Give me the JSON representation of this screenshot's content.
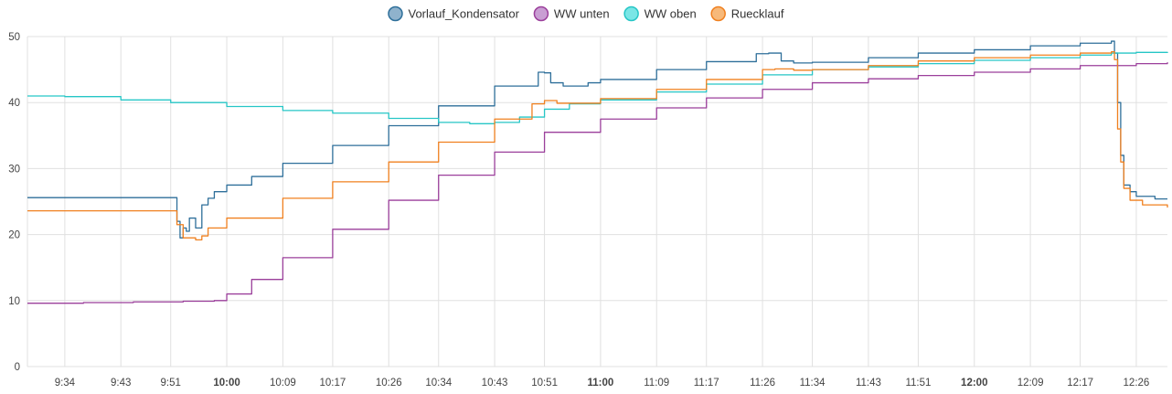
{
  "chart_data": {
    "type": "line",
    "title": "",
    "xlabel": "",
    "ylabel": "",
    "ylim": [
      0,
      50
    ],
    "yticks": [
      "0",
      "10",
      "20",
      "30",
      "40",
      "50"
    ],
    "xlim": [
      "09:28",
      "12:31"
    ],
    "xticks": [
      {
        "label": "9:34",
        "time": "09:34",
        "bold": false
      },
      {
        "label": "9:43",
        "time": "09:43",
        "bold": false
      },
      {
        "label": "9:51",
        "time": "09:51",
        "bold": false
      },
      {
        "label": "10:00",
        "time": "10:00",
        "bold": true
      },
      {
        "label": "10:09",
        "time": "10:09",
        "bold": false
      },
      {
        "label": "10:17",
        "time": "10:17",
        "bold": false
      },
      {
        "label": "10:26",
        "time": "10:26",
        "bold": false
      },
      {
        "label": "10:34",
        "time": "10:34",
        "bold": false
      },
      {
        "label": "10:43",
        "time": "10:43",
        "bold": false
      },
      {
        "label": "10:51",
        "time": "10:51",
        "bold": false
      },
      {
        "label": "11:00",
        "time": "11:00",
        "bold": true
      },
      {
        "label": "11:09",
        "time": "11:09",
        "bold": false
      },
      {
        "label": "11:17",
        "time": "11:17",
        "bold": false
      },
      {
        "label": "11:26",
        "time": "11:26",
        "bold": false
      },
      {
        "label": "11:34",
        "time": "11:34",
        "bold": false
      },
      {
        "label": "11:43",
        "time": "11:43",
        "bold": false
      },
      {
        "label": "11:51",
        "time": "11:51",
        "bold": false
      },
      {
        "label": "12:00",
        "time": "12:00",
        "bold": true
      },
      {
        "label": "12:09",
        "time": "12:09",
        "bold": false
      },
      {
        "label": "12:17",
        "time": "12:17",
        "bold": false
      },
      {
        "label": "12:26",
        "time": "12:26",
        "bold": false
      }
    ],
    "grid": true,
    "legend_position": "top-center",
    "series": [
      {
        "name": "Vorlauf_Kondensator",
        "color": "#2e6f9a",
        "legend_fill": "#8fb2cc",
        "step": true,
        "points": [
          [
            "09:28",
            25.6
          ],
          [
            "09:52",
            25.6
          ],
          [
            "09:52",
            22
          ],
          [
            "09:52.5",
            19.5
          ],
          [
            "09:53",
            21
          ],
          [
            "09:53.5",
            20.5
          ],
          [
            "09:54",
            22.5
          ],
          [
            "09:55",
            21
          ],
          [
            "09:56",
            24.5
          ],
          [
            "09:57",
            25.5
          ],
          [
            "09:58",
            26.5
          ],
          [
            "10:00",
            27.5
          ],
          [
            "10:04",
            28.8
          ],
          [
            "10:09",
            30.8
          ],
          [
            "10:17",
            33.5
          ],
          [
            "10:26",
            36.5
          ],
          [
            "10:34",
            39.5
          ],
          [
            "10:43",
            42.5
          ],
          [
            "10:50",
            44.6
          ],
          [
            "10:51",
            44.5
          ],
          [
            "10:52",
            43.0
          ],
          [
            "10:54",
            42.5
          ],
          [
            "10:58",
            43.0
          ],
          [
            "11:00",
            43.5
          ],
          [
            "11:09",
            45.0
          ],
          [
            "11:17",
            46.2
          ],
          [
            "11:25",
            47.4
          ],
          [
            "11:27",
            47.5
          ],
          [
            "11:29",
            46.3
          ],
          [
            "11:31",
            46.0
          ],
          [
            "11:34",
            46.1
          ],
          [
            "11:43",
            46.8
          ],
          [
            "11:51",
            47.5
          ],
          [
            "12:00",
            48.0
          ],
          [
            "12:09",
            48.6
          ],
          [
            "12:17",
            49.0
          ],
          [
            "12:22",
            49.3
          ],
          [
            "12:22.5",
            47.5
          ],
          [
            "12:23",
            40.0
          ],
          [
            "12:23.5",
            32.0
          ],
          [
            "12:24",
            27.5
          ],
          [
            "12:25",
            26.5
          ],
          [
            "12:26",
            25.8
          ],
          [
            "12:29",
            25.4
          ],
          [
            "12:31",
            25.4
          ]
        ]
      },
      {
        "name": "WW unten",
        "color": "#9b3f9b",
        "legend_fill": "#c99ed3",
        "step": true,
        "points": [
          [
            "09:28",
            9.6
          ],
          [
            "09:37",
            9.7
          ],
          [
            "09:45",
            9.8
          ],
          [
            "09:53",
            9.9
          ],
          [
            "09:58",
            10.0
          ],
          [
            "10:00",
            11.0
          ],
          [
            "10:04",
            13.2
          ],
          [
            "10:09",
            16.5
          ],
          [
            "10:17",
            20.8
          ],
          [
            "10:26",
            25.2
          ],
          [
            "10:34",
            29.0
          ],
          [
            "10:43",
            32.5
          ],
          [
            "10:51",
            35.5
          ],
          [
            "11:00",
            37.5
          ],
          [
            "11:09",
            39.2
          ],
          [
            "11:17",
            40.7
          ],
          [
            "11:26",
            42.0
          ],
          [
            "11:34",
            43.0
          ],
          [
            "11:43",
            43.6
          ],
          [
            "11:51",
            44.1
          ],
          [
            "12:00",
            44.6
          ],
          [
            "12:09",
            45.1
          ],
          [
            "12:17",
            45.6
          ],
          [
            "12:26",
            45.9
          ],
          [
            "12:31",
            46.1
          ]
        ]
      },
      {
        "name": "WW oben",
        "color": "#26c6c6",
        "legend_fill": "#7ae6e6",
        "step": true,
        "points": [
          [
            "09:28",
            41.0
          ],
          [
            "09:34",
            40.9
          ],
          [
            "09:43",
            40.4
          ],
          [
            "09:51",
            40.0
          ],
          [
            "10:00",
            39.4
          ],
          [
            "10:09",
            38.8
          ],
          [
            "10:17",
            38.4
          ],
          [
            "10:26",
            37.6
          ],
          [
            "10:34",
            37.0
          ],
          [
            "10:39",
            36.8
          ],
          [
            "10:43",
            37.0
          ],
          [
            "10:47",
            37.8
          ],
          [
            "10:51",
            39.0
          ],
          [
            "10:55",
            39.8
          ],
          [
            "11:00",
            40.4
          ],
          [
            "11:09",
            41.6
          ],
          [
            "11:17",
            42.8
          ],
          [
            "11:26",
            44.2
          ],
          [
            "11:34",
            45.0
          ],
          [
            "11:43",
            45.4
          ],
          [
            "11:51",
            45.9
          ],
          [
            "12:00",
            46.4
          ],
          [
            "12:09",
            46.8
          ],
          [
            "12:17",
            47.2
          ],
          [
            "12:22",
            47.5
          ],
          [
            "12:26",
            47.6
          ],
          [
            "12:31",
            47.5
          ]
        ]
      },
      {
        "name": "Ruecklauf",
        "color": "#f0801f",
        "legend_fill": "#f7b97a",
        "step": true,
        "points": [
          [
            "09:28",
            23.6
          ],
          [
            "09:52",
            23.6
          ],
          [
            "09:52",
            21.5
          ],
          [
            "09:53",
            19.5
          ],
          [
            "09:55",
            19.2
          ],
          [
            "09:56",
            19.8
          ],
          [
            "09:57",
            21.0
          ],
          [
            "10:00",
            22.5
          ],
          [
            "10:09",
            25.5
          ],
          [
            "10:17",
            28.0
          ],
          [
            "10:26",
            31.0
          ],
          [
            "10:34",
            34.0
          ],
          [
            "10:43",
            37.5
          ],
          [
            "10:49",
            39.8
          ],
          [
            "10:51",
            40.3
          ],
          [
            "10:53",
            39.9
          ],
          [
            "11:00",
            40.6
          ],
          [
            "11:09",
            42.0
          ],
          [
            "11:17",
            43.5
          ],
          [
            "11:26",
            45.0
          ],
          [
            "11:28",
            45.1
          ],
          [
            "11:31",
            44.9
          ],
          [
            "11:34",
            45.0
          ],
          [
            "11:43",
            45.6
          ],
          [
            "11:51",
            46.3
          ],
          [
            "12:00",
            46.8
          ],
          [
            "12:09",
            47.2
          ],
          [
            "12:17",
            47.5
          ],
          [
            "12:22",
            47.7
          ],
          [
            "12:22.5",
            46.5
          ],
          [
            "12:23",
            36.0
          ],
          [
            "12:23.5",
            31.0
          ],
          [
            "12:24",
            27.0
          ],
          [
            "12:25",
            25.2
          ],
          [
            "12:27",
            24.5
          ],
          [
            "12:31",
            24.1
          ]
        ]
      }
    ]
  }
}
